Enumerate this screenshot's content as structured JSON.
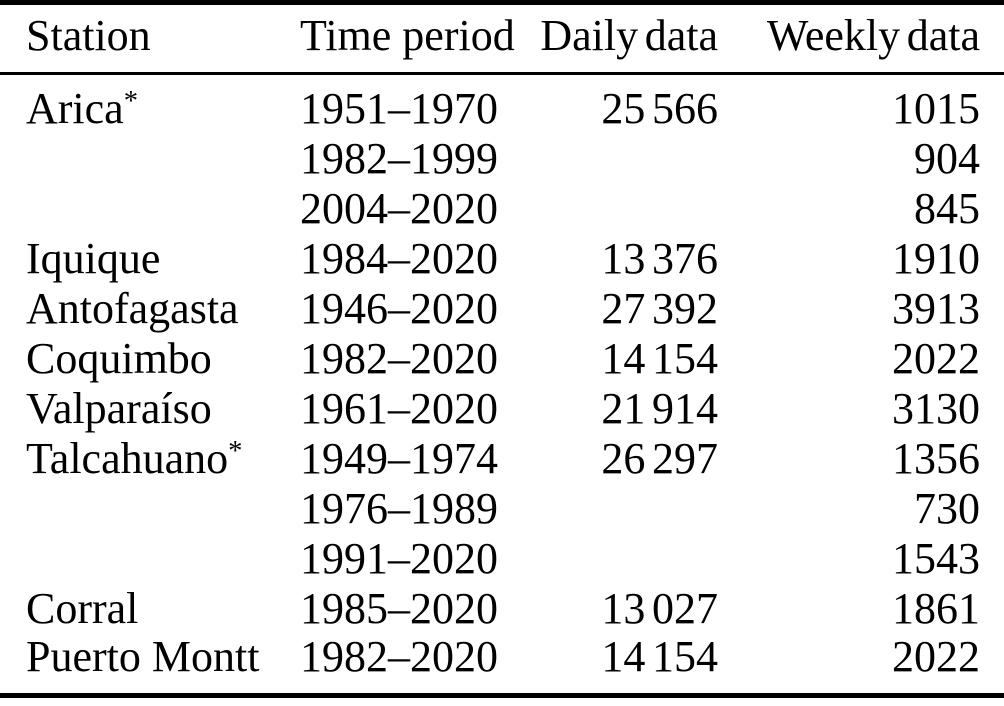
{
  "table": {
    "columns": [
      "Station",
      "Time period",
      "Daily data",
      "Weekly data"
    ],
    "rows": [
      {
        "station": "Arica",
        "station_sup": "*",
        "period": "1951–1970",
        "daily": "25 566",
        "weekly": "1015"
      },
      {
        "station": "",
        "station_sup": "",
        "period": "1982–1999",
        "daily": "",
        "weekly": "904"
      },
      {
        "station": "",
        "station_sup": "",
        "period": "2004–2020",
        "daily": "",
        "weekly": "845"
      },
      {
        "station": "Iquique",
        "station_sup": "",
        "period": "1984–2020",
        "daily": "13 376",
        "weekly": "1910"
      },
      {
        "station": "Antofagasta",
        "station_sup": "",
        "period": "1946–2020",
        "daily": "27 392",
        "weekly": "3913"
      },
      {
        "station": "Coquimbo",
        "station_sup": "",
        "period": "1982–2020",
        "daily": "14 154",
        "weekly": "2022"
      },
      {
        "station": "Valparaíso",
        "station_sup": "",
        "period": "1961–2020",
        "daily": "21 914",
        "weekly": "3130"
      },
      {
        "station": "Talcahuano",
        "station_sup": "*",
        "period": "1949–1974",
        "daily": "26 297",
        "weekly": "1356"
      },
      {
        "station": "",
        "station_sup": "",
        "period": "1976–1989",
        "daily": "",
        "weekly": "730"
      },
      {
        "station": "",
        "station_sup": "",
        "period": "1991–2020",
        "daily": "",
        "weekly": "1543"
      },
      {
        "station": "Corral",
        "station_sup": "",
        "period": "1985–2020",
        "daily": "13 027",
        "weekly": "1861"
      },
      {
        "station": "Puerto Montt",
        "station_sup": "",
        "period": "1982–2020",
        "daily": "14 154",
        "weekly": "2022"
      }
    ],
    "colors": {
      "text": "#000000",
      "background": "#ffffff",
      "rule": "#000000"
    }
  }
}
